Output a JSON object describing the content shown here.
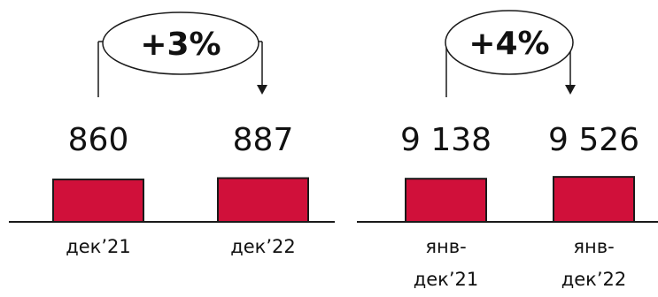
{
  "colors": {
    "bar": "#d0103a",
    "bar_stroke": "#1a1a1a",
    "ink": "#111111"
  },
  "chart_data": [
    {
      "type": "bar",
      "categories": [
        "дек’21",
        "дек’22"
      ],
      "values": [
        860,
        887
      ],
      "value_labels": [
        "860",
        "887"
      ],
      "change_label": "+3%",
      "ylim": [
        0,
        4500
      ]
    },
    {
      "type": "bar",
      "categories": [
        "янв-дек’21",
        "янв-дек’22"
      ],
      "category_lines": [
        [
          "янв-",
          "дек’21"
        ],
        [
          "янв-",
          "дек’22"
        ]
      ],
      "values": [
        9138,
        9526
      ],
      "value_labels": [
        "9 138",
        "9 526"
      ],
      "change_label": "+4%",
      "ylim": [
        0,
        47000
      ]
    }
  ]
}
